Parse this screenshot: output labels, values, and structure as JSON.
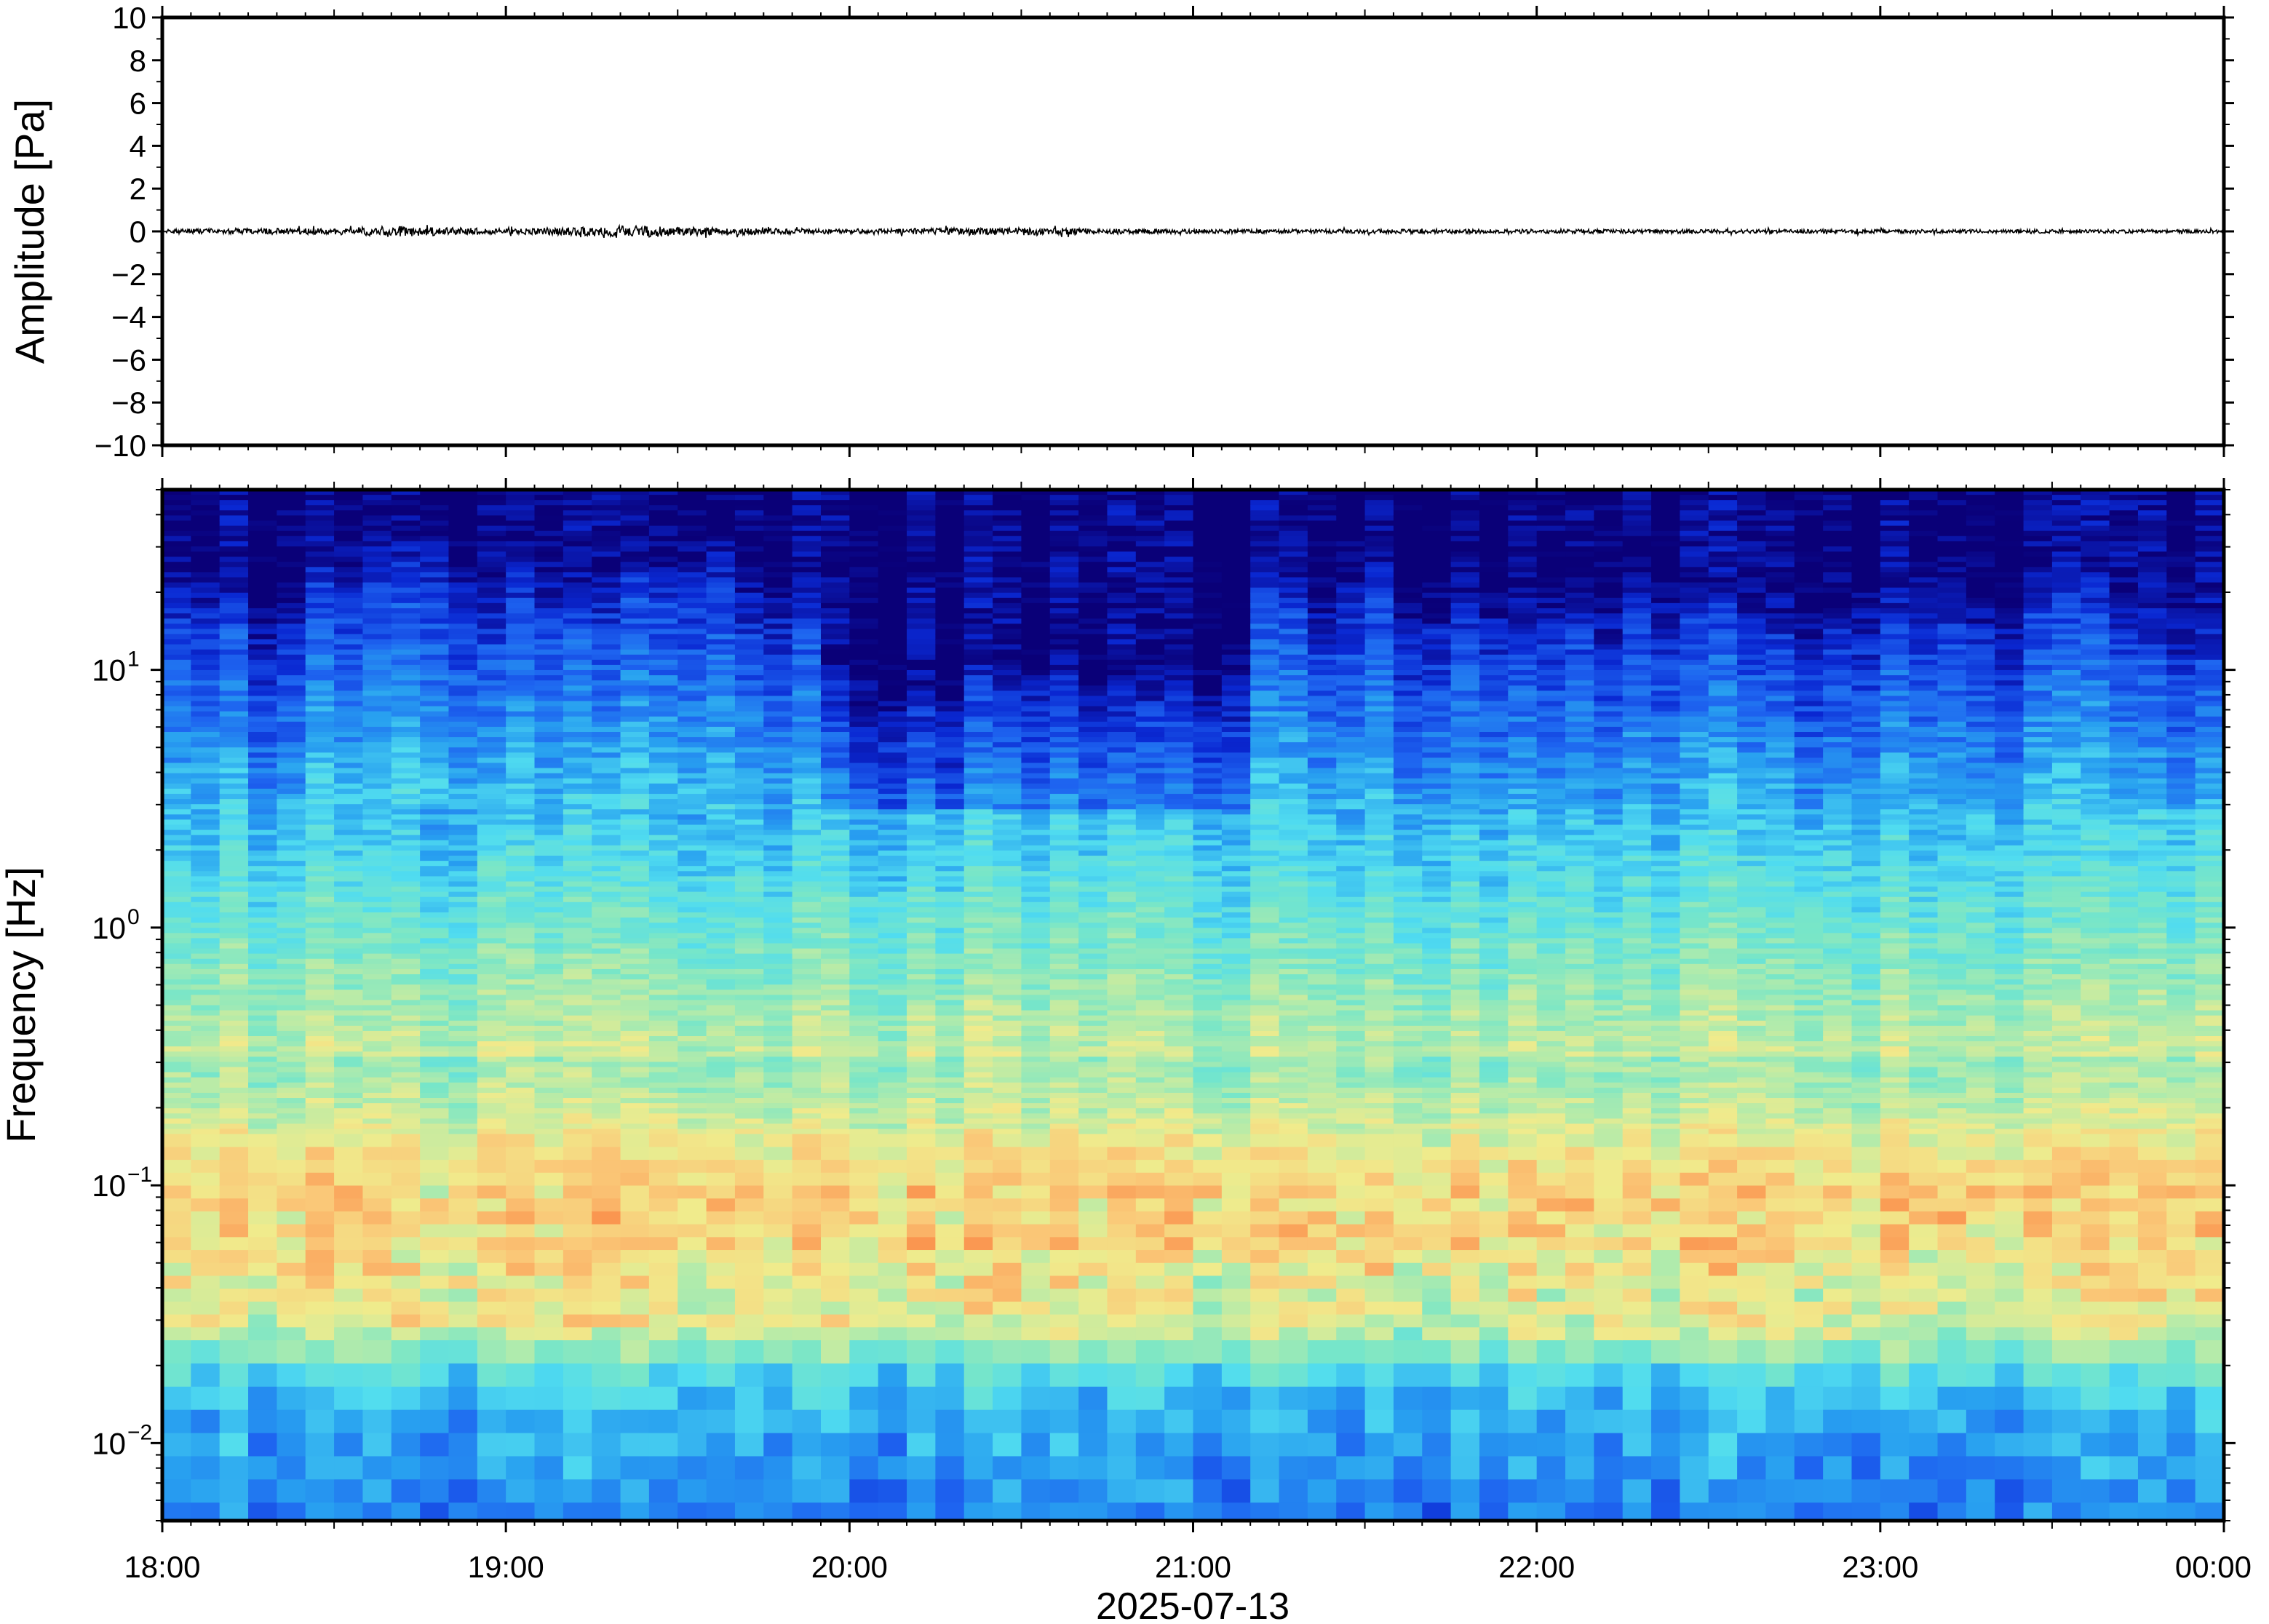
{
  "chart_data": [
    {
      "type": "line",
      "title": "",
      "xlabel": "2025-07-13",
      "ylabel": "Amplitude [Pa]",
      "xlim": [
        "18:00",
        "00:00"
      ],
      "ylim": [
        -10,
        10
      ],
      "yticks": [
        10,
        8,
        6,
        4,
        2,
        0,
        -2,
        -4,
        -6,
        -8,
        -10
      ],
      "ytick_labels": [
        "10",
        "8",
        "6",
        "4",
        "2",
        "0",
        "−2",
        "−4",
        "−6",
        "−8",
        "−10"
      ],
      "series": [
        {
          "description_values": "noise trace centred on 0 Pa, peak |amplitude| about 0.3 Pa",
          "baseline": 0,
          "peak_amplitude": 0.3,
          "envelope_x_hours": [
            0.0,
            0.5,
            0.67,
            1.0,
            1.4,
            1.5,
            2.0,
            2.4,
            3.0,
            4.0,
            5.0,
            6.0
          ],
          "envelope_values": [
            0.12,
            0.15,
            0.25,
            0.12,
            0.28,
            0.2,
            0.1,
            0.18,
            0.1,
            0.1,
            0.09,
            0.08
          ]
        }
      ],
      "line_color": "#000000",
      "grid": false
    },
    {
      "type": "heatmap",
      "title": "",
      "xlabel": "2025-07-13",
      "ylabel": "Frequency [Hz]",
      "xlim": [
        "18:00",
        "00:00"
      ],
      "ylim": [
        0.005,
        50
      ],
      "yscale": "log",
      "yticks": [
        10,
        1,
        0.1,
        0.01
      ],
      "ytick_labels": [
        {
          "base": "10",
          "exp": "1"
        },
        {
          "base": "10",
          "exp": "0"
        },
        {
          "base": "10",
          "exp": "−1"
        },
        {
          "base": "10",
          "exp": "−2"
        }
      ],
      "xticks": [
        "18:00",
        "19:00",
        "20:00",
        "21:00",
        "22:00",
        "23:00",
        "00:00"
      ],
      "colormap": "jet",
      "colormap_stops": [
        "#0a0078",
        "#0a28d2",
        "#1e64f0",
        "#28a0f0",
        "#50dcf0",
        "#78e6c8",
        "#b4ebaa",
        "#f0eb8c",
        "#fac878",
        "#fa9650"
      ],
      "grid": false,
      "notes_values": "time bins about 5 minutes; high power (orange) near 0.03-0.1 Hz, low power (dark blue) above about 15 Hz; blue tone band below 0.015 Hz"
    }
  ],
  "colors": {
    "frame": "#000000",
    "background": "#ffffff"
  }
}
